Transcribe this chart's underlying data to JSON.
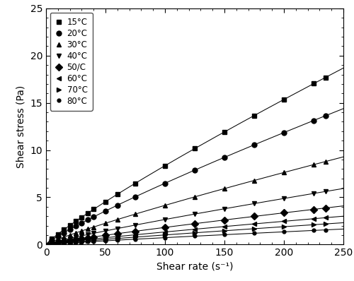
{
  "xlabel": "Shear rate (s⁻¹)",
  "ylabel": "Shear stress (Pa)",
  "xlim": [
    0,
    250
  ],
  "ylim": [
    0,
    25
  ],
  "xticks": [
    0,
    50,
    100,
    150,
    200,
    250
  ],
  "yticks": [
    0,
    5,
    10,
    15,
    20,
    25
  ],
  "series": [
    {
      "label": "15°C",
      "marker": "s",
      "K": 0.145,
      "n": 0.88
    },
    {
      "label": "20°C",
      "marker": "o",
      "K": 0.118,
      "n": 0.87
    },
    {
      "label": "30°C",
      "marker": "^",
      "K": 0.072,
      "n": 0.88
    },
    {
      "label": "40°C",
      "marker": "v",
      "K": 0.046,
      "n": 0.88
    },
    {
      "label": "50/C",
      "marker": "D",
      "K": 0.03,
      "n": 0.89
    },
    {
      "label": "60°C",
      "marker": "<",
      "K": 0.022,
      "n": 0.89
    },
    {
      "label": "70°C",
      "marker": ">",
      "K": 0.016,
      "n": 0.9
    },
    {
      "label": "80°C",
      "marker": "o",
      "K": 0.012,
      "n": 0.89
    }
  ],
  "background_color": "#ffffff",
  "figsize": [
    5.0,
    3.98
  ],
  "dpi": 100
}
